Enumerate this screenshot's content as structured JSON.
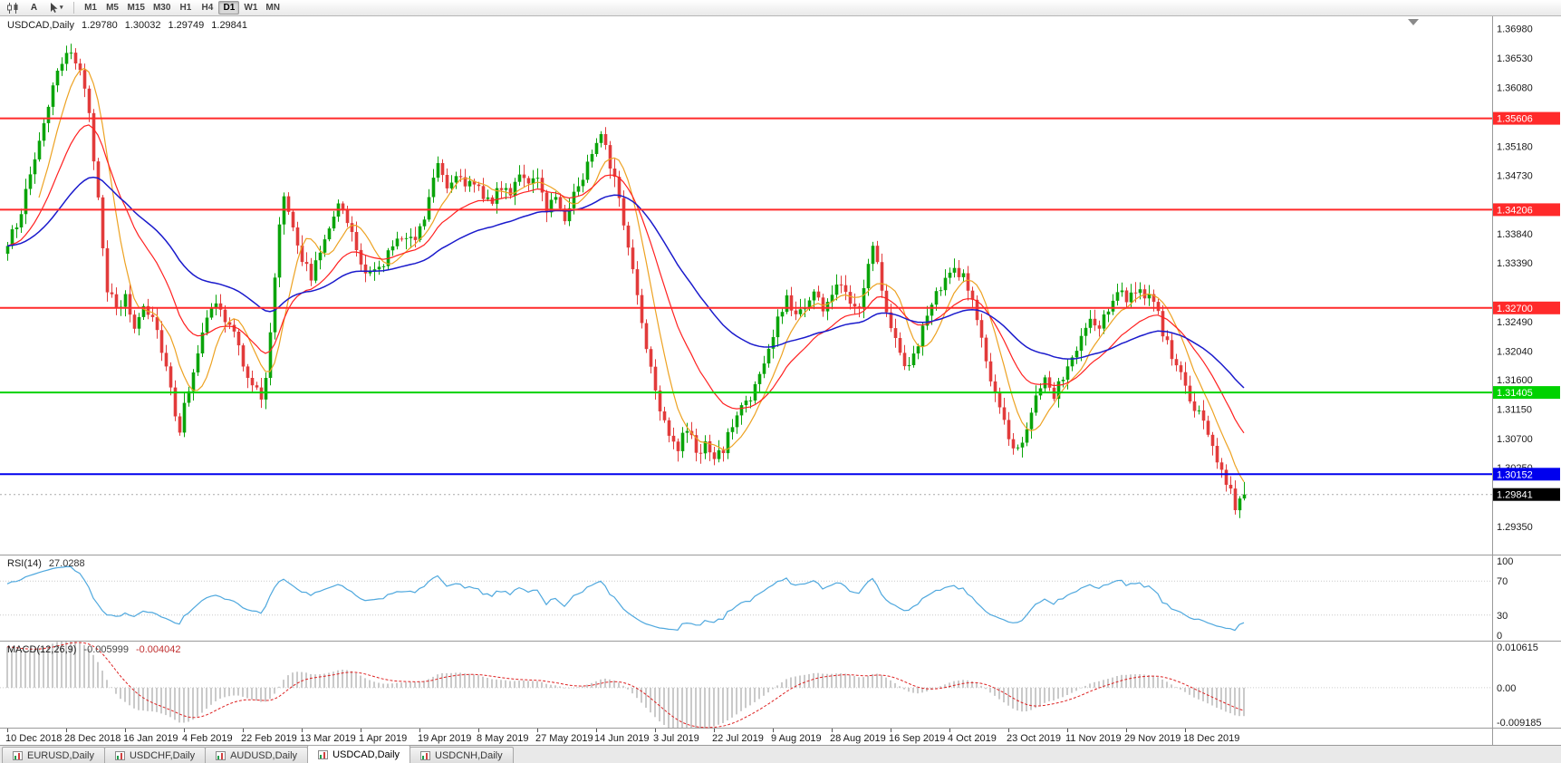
{
  "toolbar": {
    "text_tool_label": "A",
    "timeframes": [
      "M1",
      "M5",
      "M15",
      "M30",
      "H1",
      "H4",
      "D1",
      "W1",
      "MN"
    ],
    "active_timeframe": "D1"
  },
  "chart_header": {
    "symbol_label": "USDCAD,Daily",
    "open": "1.29780",
    "high": "1.30032",
    "low": "1.29749",
    "close": "1.29841"
  },
  "price_axis": {
    "labels": [
      "1.36980",
      "1.36530",
      "1.36080",
      "1.35180",
      "1.34730",
      "1.33840",
      "1.33390",
      "1.32490",
      "1.32040",
      "1.31600",
      "1.31150",
      "1.30700",
      "1.30250",
      "1.29350"
    ]
  },
  "rsi_panel": {
    "label": "RSI(14)",
    "value": "27.0288",
    "axis": [
      "100",
      "70",
      "30",
      "0"
    ],
    "levels": [
      70,
      30
    ]
  },
  "macd_panel": {
    "label": "MACD(12,26,9)",
    "macd_value": "-0.005999",
    "signal_value": "-0.004042",
    "axis_top": "0.010615",
    "axis_zero": "0.00",
    "axis_bottom": "-0.009185"
  },
  "date_axis": [
    "10 Dec 2018",
    "28 Dec 2018",
    "16 Jan 2019",
    "4 Feb 2019",
    "22 Feb 2019",
    "13 Mar 2019",
    "1 Apr 2019",
    "19 Apr 2019",
    "8 May 2019",
    "27 May 2019",
    "14 Jun 2019",
    "3 Jul 2019",
    "22 Jul 2019",
    "9 Aug 2019",
    "28 Aug 2019",
    "16 Sep 2019",
    "4 Oct 2019",
    "23 Oct 2019",
    "11 Nov 2019",
    "29 Nov 2019",
    "18 Dec 2019"
  ],
  "tabs": [
    "EURUSD,Daily",
    "USDCHF,Daily",
    "AUDUSD,Daily",
    "USDCAD,Daily",
    "USDCNH,Daily"
  ],
  "active_tab": "USDCAD,Daily",
  "chart_data": {
    "type": "candlestick",
    "symbol": "USDCAD",
    "timeframe": "Daily",
    "price_range": [
      1.2892,
      1.3717
    ],
    "candles_total": 274,
    "colors": {
      "up": "#0aa40a",
      "down": "#e23b3b"
    },
    "close_waypoints": [
      [
        0,
        1.3365
      ],
      [
        2,
        1.34
      ],
      [
        4,
        1.3445
      ],
      [
        6,
        1.35
      ],
      [
        8,
        1.3555
      ],
      [
        10,
        1.361
      ],
      [
        12,
        1.364
      ],
      [
        14,
        1.3665
      ],
      [
        16,
        1.364
      ],
      [
        18,
        1.356
      ],
      [
        20,
        1.344
      ],
      [
        22,
        1.33
      ],
      [
        24,
        1.3265
      ],
      [
        26,
        1.3285
      ],
      [
        28,
        1.324
      ],
      [
        30,
        1.3275
      ],
      [
        32,
        1.326
      ],
      [
        34,
        1.321
      ],
      [
        36,
        1.315
      ],
      [
        37,
        1.311
      ],
      [
        38,
        1.3085
      ],
      [
        40,
        1.315
      ],
      [
        42,
        1.3205
      ],
      [
        44,
        1.325
      ],
      [
        46,
        1.328
      ],
      [
        48,
        1.325
      ],
      [
        50,
        1.323
      ],
      [
        52,
        1.3185
      ],
      [
        54,
        1.3155
      ],
      [
        56,
        1.313
      ],
      [
        57,
        1.316
      ],
      [
        58,
        1.323
      ],
      [
        59,
        1.332
      ],
      [
        60,
        1.34
      ],
      [
        61,
        1.3445
      ],
      [
        63,
        1.34
      ],
      [
        65,
        1.3345
      ],
      [
        67,
        1.332
      ],
      [
        69,
        1.3355
      ],
      [
        71,
        1.34
      ],
      [
        73,
        1.3435
      ],
      [
        75,
        1.34
      ],
      [
        77,
        1.336
      ],
      [
        78,
        1.3335
      ],
      [
        80,
        1.332
      ],
      [
        82,
        1.333
      ],
      [
        84,
        1.3355
      ],
      [
        86,
        1.337
      ],
      [
        88,
        1.3385
      ],
      [
        90,
        1.338
      ],
      [
        92,
        1.341
      ],
      [
        94,
        1.3475
      ],
      [
        95,
        1.35
      ],
      [
        97,
        1.3455
      ],
      [
        99,
        1.348
      ],
      [
        101,
        1.345
      ],
      [
        103,
        1.3465
      ],
      [
        105,
        1.3445
      ],
      [
        107,
        1.3435
      ],
      [
        109,
        1.3455
      ],
      [
        111,
        1.345
      ],
      [
        113,
        1.348
      ],
      [
        115,
        1.3455
      ],
      [
        117,
        1.3465
      ],
      [
        119,
        1.3425
      ],
      [
        121,
        1.344
      ],
      [
        123,
        1.341
      ],
      [
        125,
        1.3445
      ],
      [
        127,
        1.347
      ],
      [
        129,
        1.351
      ],
      [
        131,
        1.3545
      ],
      [
        132,
        1.352
      ],
      [
        134,
        1.3465
      ],
      [
        136,
        1.34
      ],
      [
        138,
        1.333
      ],
      [
        140,
        1.325
      ],
      [
        142,
        1.318
      ],
      [
        144,
        1.312
      ],
      [
        146,
        1.308
      ],
      [
        148,
        1.3055
      ],
      [
        150,
        1.3085
      ],
      [
        152,
        1.305
      ],
      [
        154,
        1.306
      ],
      [
        156,
        1.3035
      ],
      [
        158,
        1.3055
      ],
      [
        160,
        1.309
      ],
      [
        162,
        1.312
      ],
      [
        164,
        1.3135
      ],
      [
        166,
        1.3165
      ],
      [
        168,
        1.3205
      ],
      [
        170,
        1.325
      ],
      [
        172,
        1.3285
      ],
      [
        174,
        1.326
      ],
      [
        176,
        1.3275
      ],
      [
        178,
        1.3295
      ],
      [
        180,
        1.327
      ],
      [
        182,
        1.329
      ],
      [
        184,
        1.331
      ],
      [
        186,
        1.3285
      ],
      [
        188,
        1.327
      ],
      [
        190,
        1.3345
      ],
      [
        191,
        1.337
      ],
      [
        193,
        1.33
      ],
      [
        195,
        1.324
      ],
      [
        197,
        1.32
      ],
      [
        199,
        1.3175
      ],
      [
        201,
        1.322
      ],
      [
        203,
        1.3255
      ],
      [
        205,
        1.329
      ],
      [
        207,
        1.331
      ],
      [
        209,
        1.333
      ],
      [
        211,
        1.332
      ],
      [
        213,
        1.328
      ],
      [
        215,
        1.322
      ],
      [
        217,
        1.316
      ],
      [
        219,
        1.311
      ],
      [
        221,
        1.307
      ],
      [
        223,
        1.3055
      ],
      [
        225,
        1.309
      ],
      [
        227,
        1.313
      ],
      [
        229,
        1.3155
      ],
      [
        231,
        1.3135
      ],
      [
        233,
        1.3165
      ],
      [
        235,
        1.319
      ],
      [
        237,
        1.3225
      ],
      [
        239,
        1.325
      ],
      [
        241,
        1.3235
      ],
      [
        243,
        1.327
      ],
      [
        245,
        1.33
      ],
      [
        247,
        1.3285
      ],
      [
        249,
        1.33
      ],
      [
        251,
        1.328
      ],
      [
        253,
        1.3285
      ],
      [
        255,
        1.3235
      ],
      [
        257,
        1.319
      ],
      [
        259,
        1.3165
      ],
      [
        261,
        1.313
      ],
      [
        263,
        1.3105
      ],
      [
        265,
        1.308
      ],
      [
        267,
        1.304
      ],
      [
        269,
        1.3005
      ],
      [
        270,
        1.299
      ],
      [
        271,
        1.296
      ],
      [
        272,
        1.2978
      ],
      [
        273,
        1.29841
      ]
    ],
    "last_candle": {
      "open": 1.2978,
      "high": 1.30032,
      "low": 1.29749,
      "close": 1.29841
    },
    "current_price": {
      "price": 1.29841,
      "label": "1.29841"
    },
    "moving_averages": [
      {
        "name": "fast-ma",
        "period": 8,
        "type": "sma",
        "color": "#eda222"
      },
      {
        "name": "mid-ma",
        "period": 20,
        "type": "ema",
        "color": "#ff2020"
      },
      {
        "name": "slow-ma",
        "period": 50,
        "type": "ema",
        "color": "#1a1acc"
      }
    ],
    "horizontal_lines": [
      {
        "price": 1.35606,
        "label": "1.35606",
        "color": "#ff2a2a",
        "width": 2
      },
      {
        "price": 1.34206,
        "label": "1.34206",
        "color": "#ff2a2a",
        "width": 2
      },
      {
        "price": 1.327,
        "label": "1.32700",
        "color": "#ff2a2a",
        "width": 2
      },
      {
        "price": 1.31405,
        "label": "1.31405",
        "color": "#00d200",
        "width": 2
      },
      {
        "price": 1.30152,
        "label": "1.30152",
        "color": "#0000ee",
        "width": 2
      }
    ],
    "rsi": {
      "period": 14,
      "color": "#4fa8de",
      "last_value": 27.0288
    },
    "macd": {
      "fast": 12,
      "slow": 26,
      "signal_period": 9,
      "range": [
        -0.009185,
        0.010615
      ],
      "histogram_color": "#bdbdbd",
      "signal_color": "#dd2222",
      "last_macd": -0.005999,
      "last_signal": -0.004042
    }
  }
}
